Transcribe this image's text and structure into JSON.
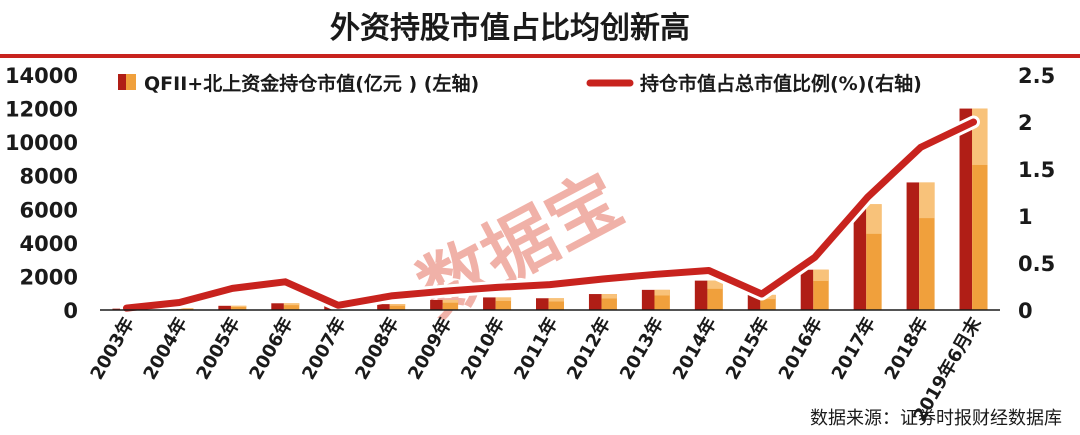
{
  "title": "外资持股市值占比均创新高",
  "source": "数据来源：证券时报财经数据库",
  "watermark": "数据宝",
  "colors": {
    "bar_dark": "#b01e16",
    "bar_light": "#f0a03c",
    "line": "#c8231e",
    "rule": "#c8231e"
  },
  "chart_data": {
    "type": "bar+line",
    "categories": [
      "2003年",
      "2004年",
      "2005年",
      "2006年",
      "2007年",
      "2008年",
      "2009年",
      "2010年",
      "2011年",
      "2012年",
      "2013年",
      "2014年",
      "2015年",
      "2016年",
      "2017年",
      "2018年",
      "2019年6月末"
    ],
    "series": [
      {
        "name": "QFII+北上资金持仓市值(亿元 ) (左轴)",
        "type": "bar",
        "axis": "left",
        "values": [
          80,
          100,
          250,
          400,
          250,
          350,
          600,
          750,
          700,
          950,
          1200,
          1750,
          900,
          2400,
          6300,
          7600,
          12000
        ]
      },
      {
        "name": "持仓市值占总市值比例(%)(右轴)",
        "type": "line",
        "axis": "right",
        "values": [
          0.02,
          0.08,
          0.23,
          0.3,
          0.05,
          0.15,
          0.2,
          0.24,
          0.27,
          0.33,
          0.38,
          0.42,
          0.17,
          0.56,
          1.2,
          1.73,
          2.0
        ]
      }
    ],
    "y_left": {
      "min": 0,
      "max": 14000,
      "ticks": [
        "0",
        "2000",
        "4000",
        "6000",
        "8000",
        "10000",
        "12000",
        "14000"
      ]
    },
    "y_right": {
      "min": 0,
      "max": 2.5,
      "ticks": [
        "0",
        "0.5",
        "1",
        "1.5",
        "2",
        "2.5"
      ]
    },
    "grid": false,
    "legend_position": "top"
  }
}
